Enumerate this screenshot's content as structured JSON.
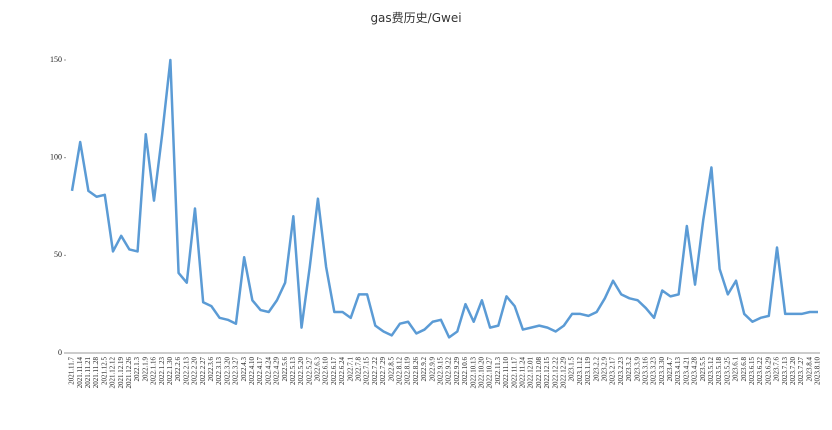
{
  "chart_data": {
    "type": "line",
    "title": "gas费历史/Gwei",
    "categories": [
      "2021.11.7",
      "2021.11.14",
      "2021.11.21",
      "2021.11.28",
      "2021.12.5",
      "2021.12.12",
      "2021.12.19",
      "2021.12.26",
      "2022.1.3",
      "2022.1.9",
      "2022.1.16",
      "2022.1.23",
      "2022.1.30",
      "2022.2.6",
      "2022.2.13",
      "2022.2.20",
      "2022.2.27",
      "2022.3.6",
      "2022.3.13",
      "2022.3.20",
      "2022.3.27",
      "2022.4.3",
      "2022.4.10",
      "2022.4.17",
      "2022.4.24",
      "2022.4.29",
      "2022.5.6",
      "2022.5.13",
      "2022.5.20",
      "2022.5.27",
      "2022.6.3",
      "2022.6.10",
      "2022.6.17",
      "2022.6.24",
      "2022.7.1",
      "2022.7.8",
      "2022.7.15",
      "2022.7.22",
      "2022.7.29",
      "2022.8.5",
      "2022.8.12",
      "2022.8.19",
      "2022.8.26",
      "2022.9.2",
      "2022.9.9",
      "2022.9.15",
      "2022.9.22",
      "2022.9.29",
      "2022.10.6",
      "2022.10.13",
      "2022.10.20",
      "2022.10.27",
      "2022.11.3",
      "2022.11.10",
      "2022.11.17",
      "2022.11.24",
      "2022.12.01",
      "2022.12.08",
      "2022.12.15",
      "2022.12.22",
      "2022.12.29",
      "2023.1.5",
      "2023.1.12",
      "2023.1.19",
      "2023.2.2",
      "2023.2.9",
      "2023.2.17",
      "2023.2.23",
      "2023.3.2",
      "2023.3.9",
      "2023.3.16",
      "2023.3.23",
      "2023.3.30",
      "2023.4.7",
      "2023.4.13",
      "2023.4.21",
      "2023.4.28",
      "2023.5.5",
      "2023.5.12",
      "2023.5.18",
      "2023.5.25",
      "2023.6.1",
      "2023.6.8",
      "2023.6.15",
      "2023.6.22",
      "2023.6.29",
      "2023.7.6",
      "2023.7.13",
      "2023.7.20",
      "2023.7.27",
      "2023.8.4",
      "2023.8.10"
    ],
    "series": [
      {
        "name": "gas",
        "color": "#5b9bd5",
        "values": [
          83,
          108,
          83,
          80,
          81,
          52,
          60,
          53,
          52,
          112,
          78,
          112,
          150,
          41,
          36,
          74,
          26,
          24,
          18,
          17,
          15,
          49,
          27,
          22,
          21,
          27,
          36,
          70,
          13,
          44,
          79,
          44,
          21,
          21,
          18,
          30,
          30,
          14,
          11,
          9,
          15,
          16,
          10,
          12,
          16,
          17,
          8,
          11,
          25,
          16,
          27,
          13,
          14,
          29,
          24,
          12,
          13,
          14,
          13,
          11,
          14,
          20,
          20,
          19,
          21,
          28,
          37,
          30,
          28,
          27,
          23,
          18,
          32,
          29,
          30,
          65,
          35,
          68,
          95,
          43,
          30,
          37,
          20,
          16,
          18,
          19,
          54,
          20,
          20,
          20,
          21,
          21
        ]
      }
    ],
    "ylim": [
      0,
      150
    ],
    "yticks": [
      0,
      50,
      100,
      150
    ],
    "grid": false
  }
}
